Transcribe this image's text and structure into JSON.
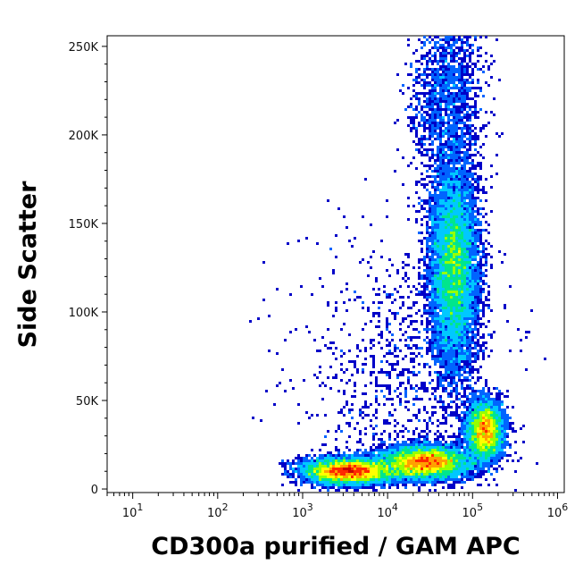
{
  "chart_data": {
    "type": "heatmap",
    "subtype": "flow-cytometry-density-dot-plot",
    "title": "",
    "xlabel": "CD300a purified / GAM APC",
    "ylabel": "Side Scatter",
    "x_scale": "log",
    "xlim": [
      5,
      1200000
    ],
    "ylim": [
      -2000,
      256000
    ],
    "x_ticks": [
      {
        "value": 10,
        "base": "10",
        "exp": "1"
      },
      {
        "value": 100,
        "base": "10",
        "exp": "2"
      },
      {
        "value": 1000,
        "base": "10",
        "exp": "3"
      },
      {
        "value": 10000,
        "base": "10",
        "exp": "4"
      },
      {
        "value": 100000,
        "base": "10",
        "exp": "5"
      },
      {
        "value": 1000000,
        "base": "10",
        "exp": "6"
      }
    ],
    "y_ticks": [
      {
        "value": 0,
        "label": "0"
      },
      {
        "value": 50000,
        "label": "50K"
      },
      {
        "value": 100000,
        "label": "100K"
      },
      {
        "value": 150000,
        "label": "150K"
      },
      {
        "value": 200000,
        "label": "200K"
      },
      {
        "value": 250000,
        "label": "250K"
      }
    ],
    "grid": false,
    "legend": "none",
    "colormap": [
      "#0000c8",
      "#0064ff",
      "#00c8ff",
      "#00e68c",
      "#96ff00",
      "#ffff00",
      "#ffa000",
      "#ff2800",
      "#c80000"
    ],
    "populations": [
      {
        "x_center": 60000,
        "y_center": 125000,
        "x_spread_decades": 0.12,
        "y_spread": 28000,
        "density": 1.0
      },
      {
        "x_center": 140000,
        "y_center": 33000,
        "x_spread_decades": 0.09,
        "y_spread": 8000,
        "density": 0.55
      },
      {
        "x_center": 3500,
        "y_center": 10000,
        "x_spread_decades": 0.22,
        "y_spread": 3500,
        "density": 0.85
      },
      {
        "x_center": 28000,
        "y_center": 15000,
        "x_spread_decades": 0.22,
        "y_spread": 4500,
        "density": 0.85
      },
      {
        "x_center": 50000,
        "y_center": 220000,
        "x_spread_decades": 0.18,
        "y_spread": 25000,
        "density": 0.18
      },
      {
        "x_center": 15000,
        "y_center": 60000,
        "x_spread_decades": 0.5,
        "y_spread": 40000,
        "density": 0.12
      }
    ]
  }
}
